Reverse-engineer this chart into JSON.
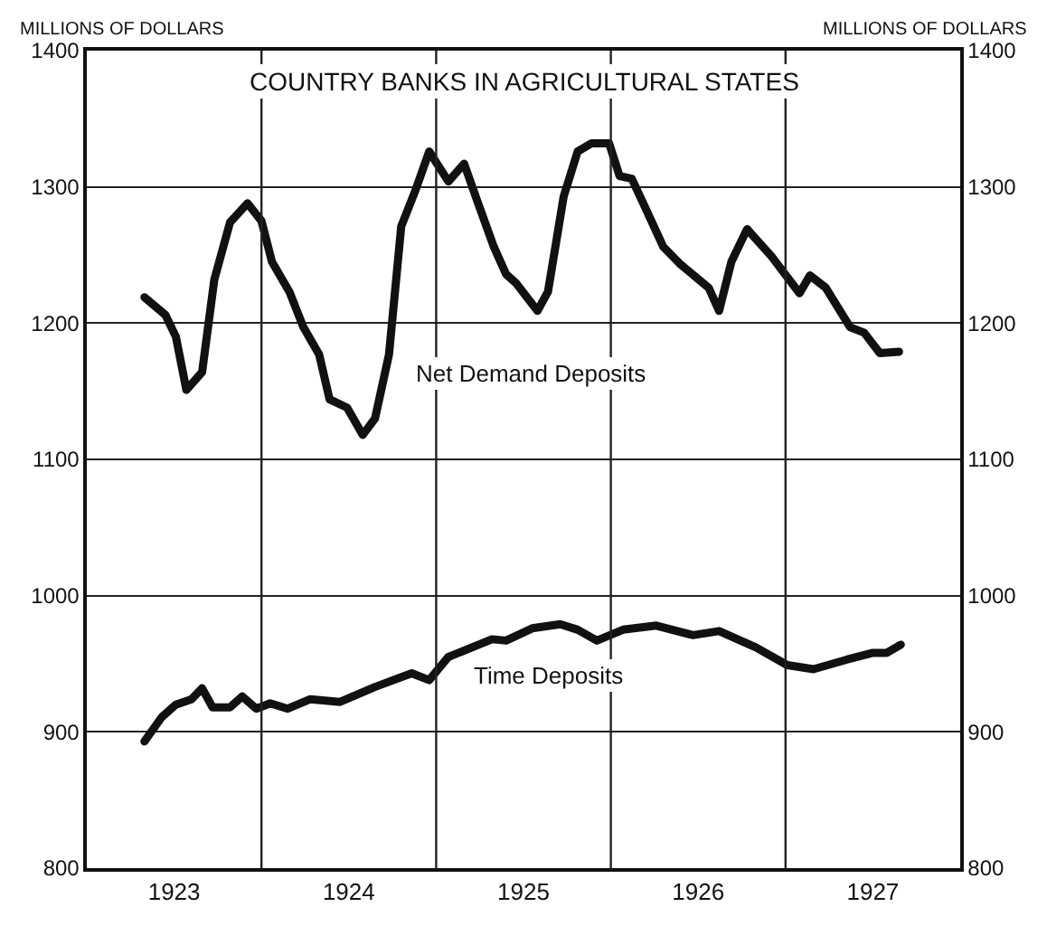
{
  "chart_data": {
    "type": "line",
    "title": "COUNTRY BANKS IN AGRICULTURAL STATES",
    "ylabel": "MILLIONS OF DOLLARS",
    "y2label": "MILLIONS OF DOLLARS",
    "xlim": [
      1923,
      1928
    ],
    "xticks": [
      {
        "value": 1923.5,
        "label": "1923"
      },
      {
        "value": 1924,
        "label": null
      },
      {
        "value": 1924.5,
        "label": "1924"
      },
      {
        "value": 1925,
        "label": null
      },
      {
        "value": 1925.5,
        "label": "1925"
      },
      {
        "value": 1926,
        "label": null
      },
      {
        "value": 1926.5,
        "label": "1926"
      },
      {
        "value": 1927,
        "label": null
      },
      {
        "value": 1927.5,
        "label": "1927"
      }
    ],
    "ylim": [
      800,
      1400
    ],
    "yticks": [
      800,
      900,
      1000,
      1100,
      1200,
      1300,
      1400
    ],
    "y2lim": [
      800,
      1400
    ],
    "y2ticks": [
      800,
      900,
      1000,
      1100,
      1200,
      1300,
      1400
    ],
    "grid": true,
    "marker": "none",
    "line_style": "solid",
    "annotations": [
      "Net Demand Deposits",
      "Time Deposits"
    ],
    "series": [
      {
        "color": "#111111",
        "x": [
          1923.33,
          1923.45,
          1923.51,
          1923.57,
          1923.66,
          1923.73,
          1923.82,
          1923.92,
          1924.0,
          1924.06,
          1924.16,
          1924.24,
          1924.33,
          1924.39,
          1924.49,
          1924.58,
          1924.65,
          1924.73,
          1924.8,
          1924.88,
          1924.96,
          1925.07,
          1925.16,
          1925.24,
          1925.33,
          1925.4,
          1925.46,
          1925.58,
          1925.64,
          1925.73,
          1925.81,
          1925.89,
          1925.99,
          1926.05,
          1926.12,
          1926.2,
          1926.3,
          1926.4,
          1926.56,
          1926.62,
          1926.69,
          1926.78,
          1926.92,
          1927.08,
          1927.14,
          1927.23,
          1927.37,
          1927.45,
          1927.54,
          1927.65
        ],
        "values": [
          1219,
          1206,
          1190,
          1151,
          1164,
          1232,
          1274,
          1288,
          1275,
          1245,
          1223,
          1197,
          1177,
          1144,
          1138,
          1118,
          1130,
          1177,
          1271,
          1297,
          1326,
          1304,
          1317,
          1288,
          1256,
          1236,
          1229,
          1209,
          1223,
          1293,
          1326,
          1332,
          1332,
          1308,
          1306,
          1284,
          1256,
          1243,
          1226,
          1209,
          1245,
          1269,
          1249,
          1222,
          1235,
          1226,
          1197,
          1193,
          1178,
          1179
        ]
      },
      {
        "color": "#111111",
        "x": [
          1923.33,
          1923.43,
          1923.51,
          1923.6,
          1923.66,
          1923.72,
          1923.82,
          1923.89,
          1923.97,
          1924.05,
          1924.15,
          1924.28,
          1924.45,
          1924.65,
          1924.86,
          1924.96,
          1925.07,
          1925.32,
          1925.4,
          1925.55,
          1925.71,
          1925.81,
          1925.92,
          1926.07,
          1926.26,
          1926.47,
          1926.62,
          1926.83,
          1927.01,
          1927.16,
          1927.35,
          1927.5,
          1927.58,
          1927.66
        ],
        "values": [
          893,
          911,
          920,
          924,
          932,
          918,
          918,
          926,
          917,
          921,
          917,
          924,
          922,
          933,
          943,
          938,
          955,
          968,
          967,
          976,
          979,
          975,
          967,
          975,
          978,
          971,
          974,
          962,
          949,
          946,
          953,
          958,
          958,
          964
        ]
      }
    ]
  }
}
